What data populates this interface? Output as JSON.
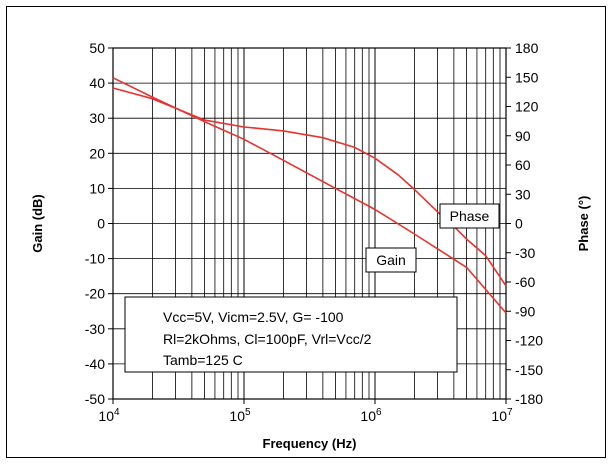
{
  "chart_data": {
    "type": "line",
    "xscale": "log",
    "xlim": [
      10000,
      10000000
    ],
    "ylim_left": [
      -50,
      50
    ],
    "ylim_right": [
      -180,
      180
    ],
    "xlabel": "Frequency (Hz)",
    "ylabel_left": "Gain (dB)",
    "ylabel_right": "Phase (°)",
    "x_tick_labels": [
      {
        "base": "10",
        "exp": "4",
        "value": 10000
      },
      {
        "base": "10",
        "exp": "5",
        "value": 100000
      },
      {
        "base": "10",
        "exp": "6",
        "value": 1000000
      },
      {
        "base": "10",
        "exp": "7",
        "value": 10000000
      }
    ],
    "y_left_ticks": [
      50,
      40,
      30,
      20,
      10,
      0,
      -10,
      -20,
      -30,
      -40,
      -50
    ],
    "y_right_ticks": [
      180,
      150,
      120,
      90,
      60,
      30,
      0,
      -30,
      -60,
      -90,
      -120,
      -150,
      -180
    ],
    "grid": true,
    "series": [
      {
        "name": "Gain",
        "axis": "left",
        "color": "#e8322d",
        "points": [
          [
            10000,
            41.5
          ],
          [
            20000,
            36
          ],
          [
            50000,
            29
          ],
          [
            100000,
            24
          ],
          [
            200000,
            18
          ],
          [
            500000,
            10
          ],
          [
            1000000,
            4
          ],
          [
            2000000,
            -3
          ],
          [
            5000000,
            -12.5
          ],
          [
            10000000,
            -25.5
          ]
        ]
      },
      {
        "name": "Phase",
        "axis": "right",
        "color": "#e8322d",
        "points": [
          [
            10000,
            139
          ],
          [
            20000,
            128
          ],
          [
            50000,
            106
          ],
          [
            100000,
            99
          ],
          [
            200000,
            95
          ],
          [
            400000,
            88
          ],
          [
            700000,
            78
          ],
          [
            1000000,
            67
          ],
          [
            1500000,
            50
          ],
          [
            2000000,
            35
          ],
          [
            3000000,
            12
          ],
          [
            4000000,
            -3
          ],
          [
            5000000,
            -16
          ],
          [
            7000000,
            -33
          ],
          [
            10000000,
            -64
          ]
        ]
      }
    ],
    "annotations": {
      "gain_label": "Gain",
      "phase_label": "Phase",
      "conditions": [
        "Vcc=5V, Vicm=2.5V, G= -100",
        "Rl=2kOhms, Cl=100pF, Vrl=Vcc/2",
        "Tamb=125 C"
      ]
    }
  }
}
